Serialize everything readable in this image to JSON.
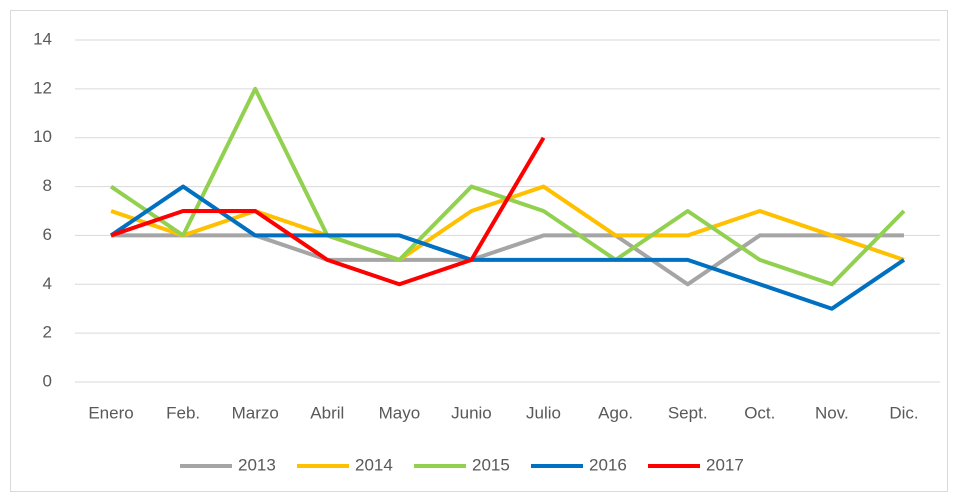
{
  "chart_data": {
    "type": "line",
    "categories": [
      "Enero",
      "Feb.",
      "Marzo",
      "Abril",
      "Mayo",
      "Junio",
      "Julio",
      "Ago.",
      "Sept.",
      "Oct.",
      "Nov.",
      "Dic."
    ],
    "series": [
      {
        "name": "2013",
        "color": "#a5a5a5",
        "values": [
          6,
          6,
          6,
          5,
          5,
          5,
          6,
          6,
          4,
          6,
          6,
          6
        ]
      },
      {
        "name": "2014",
        "color": "#ffc000",
        "values": [
          7,
          6,
          7,
          6,
          5,
          7,
          8,
          6,
          6,
          7,
          6,
          5
        ]
      },
      {
        "name": "2015",
        "color": "#92d050",
        "values": [
          8,
          6,
          12,
          6,
          5,
          8,
          7,
          5,
          7,
          5,
          4,
          7
        ]
      },
      {
        "name": "2016",
        "color": "#0070c0",
        "values": [
          6,
          8,
          6,
          6,
          6,
          5,
          5,
          5,
          5,
          4,
          3,
          5
        ]
      },
      {
        "name": "2017",
        "color": "#ff0000",
        "values": [
          6,
          7,
          7,
          5,
          4,
          5,
          10,
          null,
          null,
          null,
          null,
          null
        ]
      }
    ],
    "ylim": [
      0,
      14
    ],
    "yticks": [
      0,
      2,
      4,
      6,
      8,
      10,
      12,
      14
    ],
    "grid": true,
    "legend": "bottom"
  }
}
